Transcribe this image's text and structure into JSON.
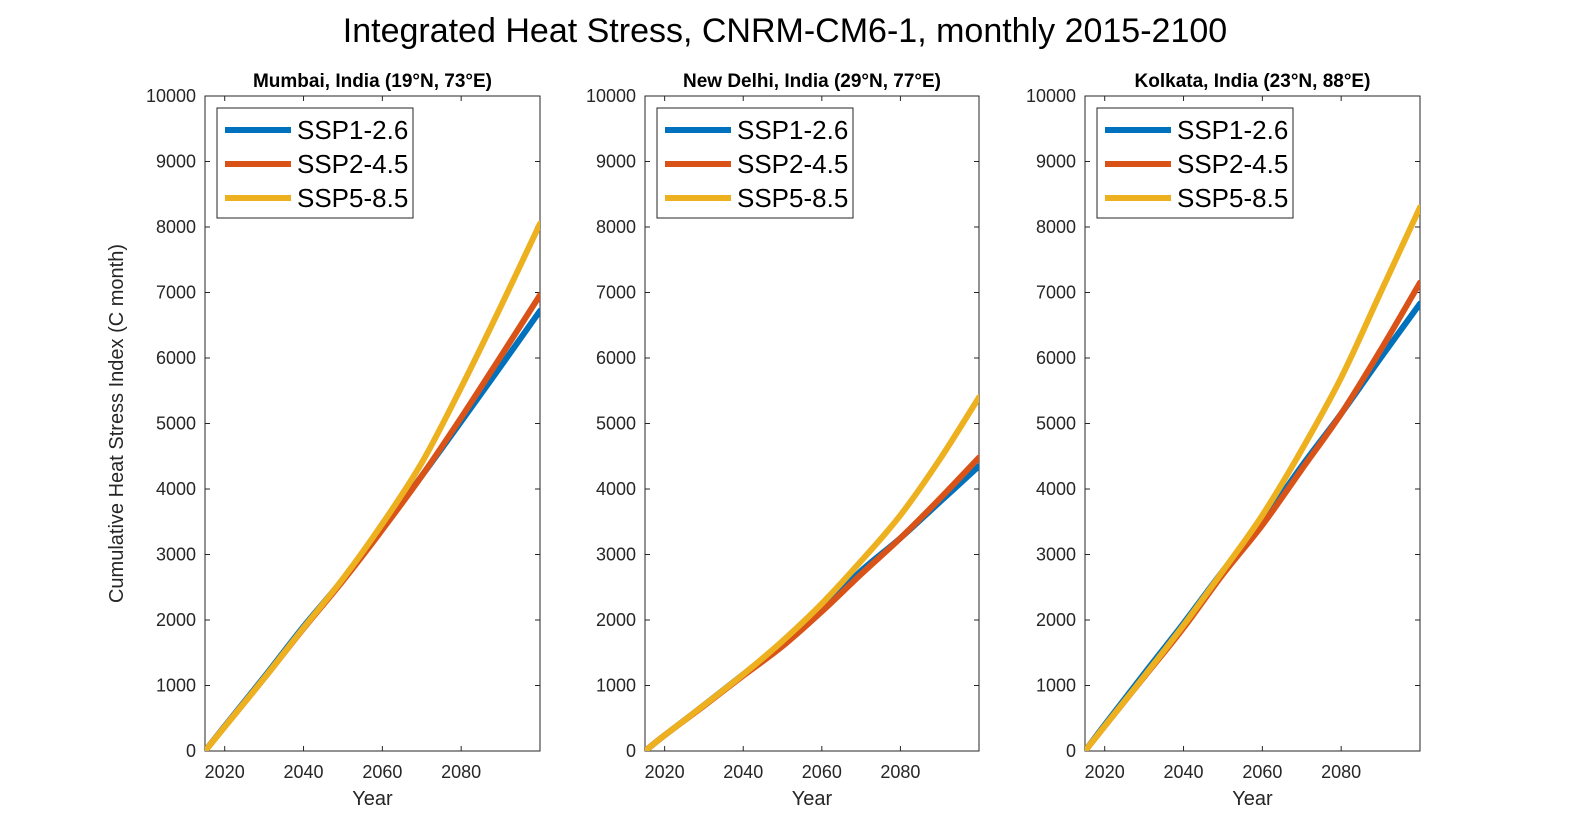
{
  "title": "Integrated Heat Stress, CNRM-CM6-1, monthly 2015-2100",
  "colors": {
    "SSP1-2.6": "#0072BD",
    "SSP2-4.5": "#D95319",
    "SSP5-8.5": "#EDB120"
  },
  "chart_data": [
    {
      "type": "line",
      "title": "Mumbai, India (19°N, 73°E)",
      "xlabel": "Year",
      "ylabel": "Cumulative Heat Stress Index (C month)",
      "xlim": [
        2015,
        2100
      ],
      "ylim": [
        0,
        10000
      ],
      "xticks": [
        2020,
        2040,
        2060,
        2080
      ],
      "yticks": [
        0,
        1000,
        2000,
        3000,
        4000,
        5000,
        6000,
        7000,
        8000,
        9000,
        10000
      ],
      "legend_position": "top-left",
      "x": [
        2015,
        2020,
        2030,
        2040,
        2050,
        2060,
        2070,
        2080,
        2090,
        2100
      ],
      "series": [
        {
          "name": "SSP1-2.6",
          "values": [
            0,
            380,
            1130,
            1900,
            2620,
            3400,
            4200,
            5030,
            5870,
            6720
          ]
        },
        {
          "name": "SSP2-4.5",
          "values": [
            0,
            370,
            1110,
            1870,
            2600,
            3380,
            4200,
            5090,
            6020,
            6960
          ]
        },
        {
          "name": "SSP5-8.5",
          "values": [
            0,
            370,
            1110,
            1880,
            2630,
            3470,
            4400,
            5550,
            6780,
            8050
          ]
        }
      ]
    },
    {
      "type": "line",
      "title": "New Delhi, India (29°N, 77°E)",
      "xlabel": "Year",
      "ylabel": "",
      "xlim": [
        2015,
        2100
      ],
      "ylim": [
        0,
        10000
      ],
      "xticks": [
        2020,
        2040,
        2060,
        2080
      ],
      "yticks": [
        0,
        1000,
        2000,
        3000,
        4000,
        5000,
        6000,
        7000,
        8000,
        9000,
        10000
      ],
      "legend_position": "top-left",
      "x": [
        2015,
        2020,
        2030,
        2040,
        2050,
        2060,
        2070,
        2080,
        2090,
        2100
      ],
      "series": [
        {
          "name": "SSP1-2.6",
          "values": [
            0,
            240,
            700,
            1170,
            1650,
            2170,
            2750,
            3250,
            3800,
            4350
          ]
        },
        {
          "name": "SSP2-4.5",
          "values": [
            0,
            240,
            690,
            1150,
            1600,
            2130,
            2700,
            3250,
            3850,
            4480
          ]
        },
        {
          "name": "SSP5-8.5",
          "values": [
            0,
            240,
            700,
            1170,
            1680,
            2250,
            2900,
            3600,
            4450,
            5400
          ]
        }
      ]
    },
    {
      "type": "line",
      "title": "Kolkata, India (23°N, 88°E)",
      "xlabel": "Year",
      "ylabel": "",
      "xlim": [
        2015,
        2100
      ],
      "ylim": [
        0,
        10000
      ],
      "xticks": [
        2020,
        2040,
        2060,
        2080
      ],
      "yticks": [
        0,
        1000,
        2000,
        3000,
        4000,
        5000,
        6000,
        7000,
        8000,
        9000,
        10000
      ],
      "legend_position": "top-left",
      "x": [
        2015,
        2020,
        2030,
        2040,
        2050,
        2060,
        2070,
        2080,
        2090,
        2100
      ],
      "series": [
        {
          "name": "SSP1-2.6",
          "values": [
            0,
            400,
            1180,
            1950,
            2750,
            3500,
            4350,
            5150,
            6000,
            6830
          ]
        },
        {
          "name": "SSP2-4.5",
          "values": [
            0,
            380,
            1130,
            1880,
            2700,
            3450,
            4300,
            5150,
            6120,
            7150
          ]
        },
        {
          "name": "SSP5-8.5",
          "values": [
            0,
            380,
            1140,
            1920,
            2750,
            3600,
            4600,
            5700,
            7000,
            8300
          ]
        }
      ]
    }
  ]
}
